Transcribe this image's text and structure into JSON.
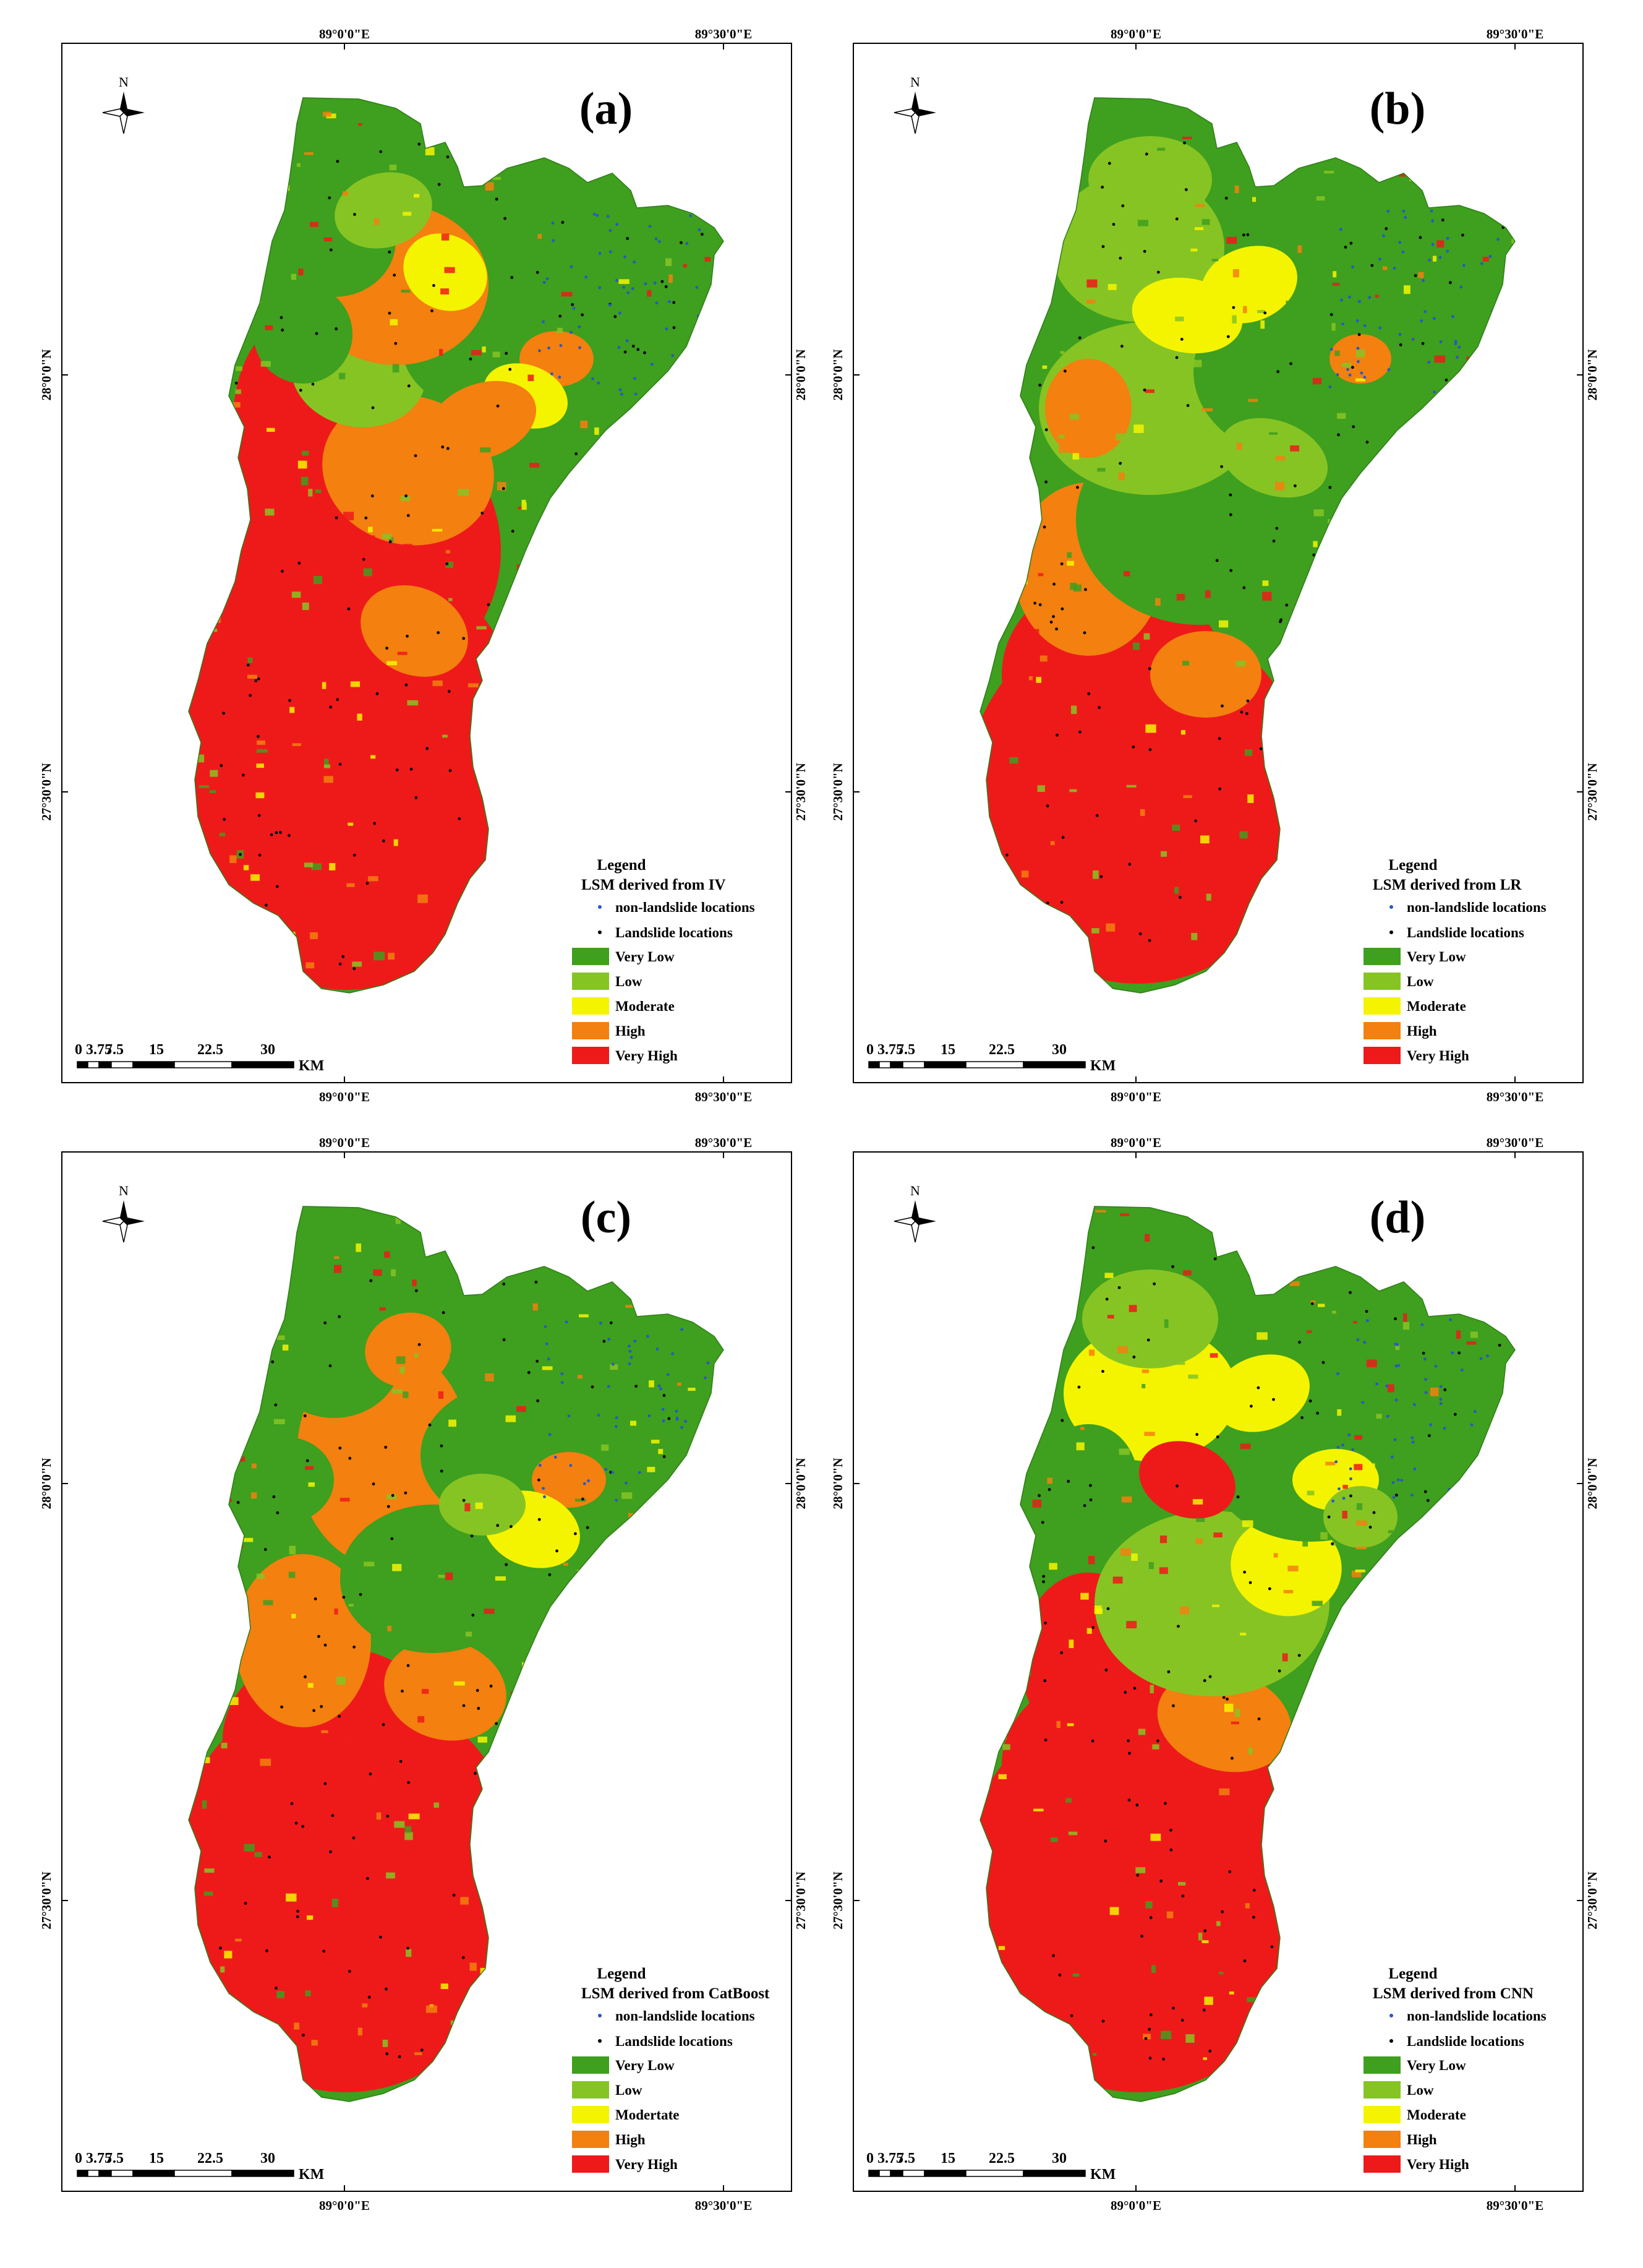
{
  "figure": {
    "labels": {
      "lon_top": "89°0'0\"E",
      "lon_right": "89°30'0\"E",
      "lat_upper": "28°0'0\"N",
      "lat_lower": "27°30'0\"N",
      "north": "N",
      "scale_unit": "KM",
      "scale_ticks": [
        "0",
        "3.75",
        "7.5",
        "15",
        "22.5",
        "30"
      ],
      "legend_heading": "Legend",
      "non_landslide": "non-landslide locations",
      "landslide": "Landslide locations"
    },
    "colors": {
      "very_low": "#3f9f1e",
      "low": "#86c424",
      "moderate": "#f4f400",
      "high": "#f3800f",
      "very_high": "#ee1a1a",
      "non_landslide_dot": "#2a57c8",
      "landslide_dot": "#000000",
      "frame": "#000000"
    },
    "panels": [
      {
        "id": "a",
        "label": "(a)",
        "legend_title": "LSM derived from IV",
        "classes": [
          "Very Low",
          "Low",
          "Moderate",
          "High",
          "Very High"
        ]
      },
      {
        "id": "b",
        "label": "(b)",
        "legend_title": "LSM derived from LR",
        "classes": [
          "Very Low",
          "Low",
          "Moderate",
          "High",
          "Very High"
        ]
      },
      {
        "id": "c",
        "label": "(c)",
        "legend_title": "LSM derived from CatBoost",
        "classes": [
          "Very Low",
          "Low",
          "Modertate",
          "High",
          "Very High"
        ]
      },
      {
        "id": "d",
        "label": "(d)",
        "legend_title": "LSM derived from CNN",
        "classes": [
          "Very Low",
          "Low",
          "Moderate",
          "High",
          "Very High"
        ]
      }
    ]
  }
}
